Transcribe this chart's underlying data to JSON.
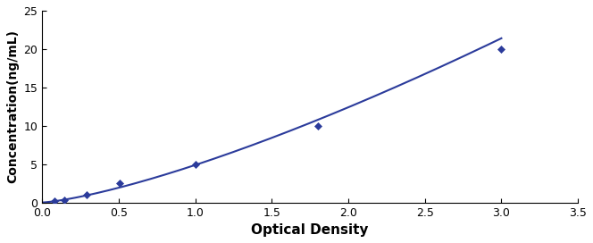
{
  "x_data": [
    0.078,
    0.147,
    0.293,
    0.506,
    1.005,
    1.8,
    3.0
  ],
  "y_data": [
    0.156,
    0.312,
    1.0,
    2.5,
    5.0,
    10.0,
    20.0
  ],
  "line_color": "#2B3B9B",
  "marker": "D",
  "marker_size": 4,
  "marker_color": "#2B3B9B",
  "xlabel": "Optical Density",
  "ylabel": "Concentration(ng/mL)",
  "xlim": [
    0,
    3.5
  ],
  "ylim": [
    0,
    25
  ],
  "xticks": [
    0,
    0.5,
    1.0,
    1.5,
    2.0,
    2.5,
    3.0,
    3.5
  ],
  "yticks": [
    0,
    5,
    10,
    15,
    20,
    25
  ],
  "xlabel_fontsize": 11,
  "ylabel_fontsize": 10,
  "tick_fontsize": 9,
  "line_width": 1.5,
  "background_color": "#ffffff",
  "figure_bg_color": "#ffffff"
}
